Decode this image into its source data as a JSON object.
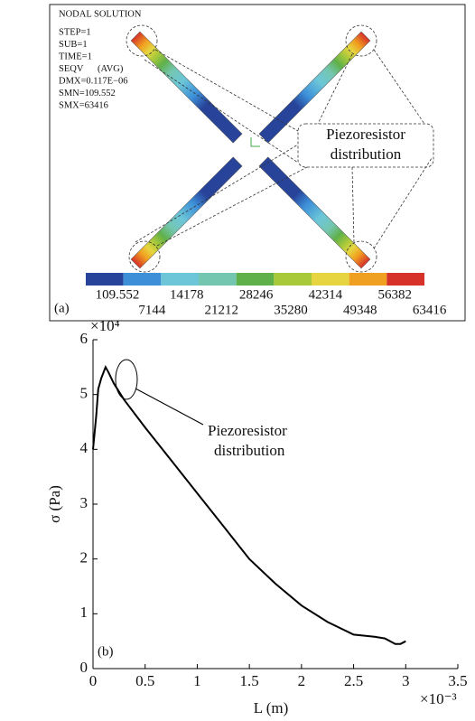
{
  "panel_a": {
    "label": "(a)",
    "header": "NODAL SOLUTION",
    "info": [
      "STEP=1",
      "SUB=1",
      "TIME=1",
      "SEQV      (AVG)",
      "DMX=0.117E−06",
      "SMN=109.552",
      "SMX=63416"
    ],
    "annotation": [
      "Piezoresistor",
      "distribution"
    ],
    "colorbar": {
      "colors": [
        "#27449a",
        "#3d8fd8",
        "#6cc6d8",
        "#74c6b0",
        "#5fb04a",
        "#a8c93a",
        "#e6d540",
        "#f0a020",
        "#d6322a"
      ],
      "labels": [
        109.552,
        7144,
        14178,
        21212,
        28246,
        35280,
        42314,
        49348,
        56382,
        63416
      ]
    }
  },
  "chart_data": {
    "type": "line",
    "panel_label": "(b)",
    "xlabel": "L (m)",
    "ylabel": "σ (Pa)",
    "x_multiplier": "×10⁻³",
    "y_multiplier": "×10⁴",
    "annotation": [
      "Piezoresistor",
      "distribution"
    ],
    "x": [
      0,
      0.03,
      0.05,
      0.08,
      0.12,
      0.15,
      0.2,
      0.3,
      0.5,
      0.75,
      1.0,
      1.25,
      1.5,
      1.75,
      2.0,
      2.25,
      2.5,
      2.7,
      2.8,
      2.9,
      2.95,
      3.0
    ],
    "values": [
      4.0,
      4.6,
      5.1,
      5.3,
      5.5,
      5.4,
      5.2,
      4.9,
      4.4,
      3.8,
      3.2,
      2.6,
      2.0,
      1.55,
      1.15,
      0.85,
      0.62,
      0.58,
      0.55,
      0.45,
      0.45,
      0.5
    ],
    "color": "#000000",
    "xlim": [
      0,
      3.5
    ],
    "xticks": [
      0,
      0.5,
      1.0,
      1.5,
      2.0,
      2.5,
      3.0,
      3.5
    ],
    "ylim": [
      0,
      6
    ],
    "yticks": [
      0,
      1,
      2,
      3,
      4,
      5,
      6
    ]
  }
}
